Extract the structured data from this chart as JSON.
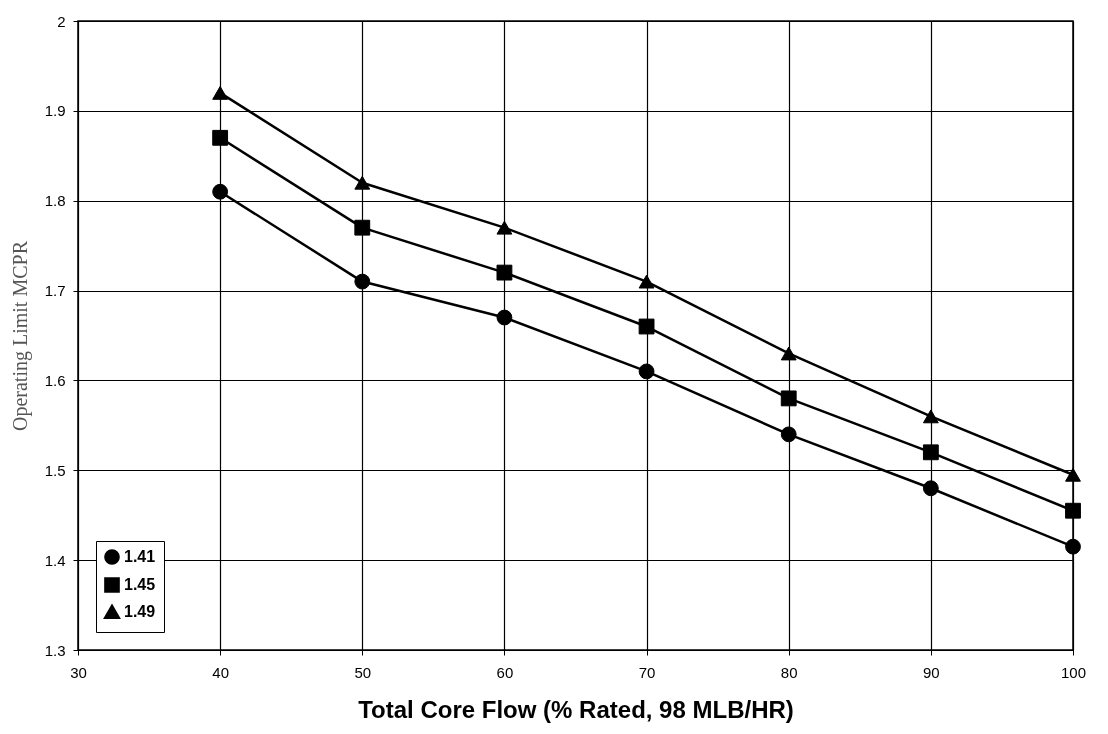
{
  "chart_data": {
    "type": "line",
    "xlabel": "Total Core Flow (% Rated, 98 MLB/HR)",
    "ylabel": "Operating Limit MCPR",
    "x": [
      40,
      50,
      60,
      70,
      80,
      90,
      100
    ],
    "series": [
      {
        "name": "1.41",
        "color": "#000000",
        "marker": "circle",
        "values": [
          1.81,
          1.71,
          1.67,
          1.61,
          1.54,
          1.48,
          1.415
        ]
      },
      {
        "name": "1.45",
        "color": "#000000",
        "marker": "square",
        "values": [
          1.87,
          1.77,
          1.72,
          1.66,
          1.58,
          1.52,
          1.455
        ]
      },
      {
        "name": "1.49",
        "color": "#000000",
        "marker": "triangle",
        "values": [
          1.92,
          1.82,
          1.77,
          1.71,
          1.63,
          1.56,
          1.495
        ]
      }
    ],
    "xlim": [
      30,
      100
    ],
    "xticks": [
      30,
      40,
      50,
      60,
      70,
      80,
      90,
      100
    ],
    "ylim": [
      1.3,
      2
    ],
    "yticks": [
      1.3,
      1.4,
      1.5,
      1.6,
      1.7,
      1.8,
      1.9,
      {
        "value": 2,
        "label": "2"
      }
    ],
    "grid": true,
    "legend": "bottom left",
    "line_style": "solid"
  }
}
